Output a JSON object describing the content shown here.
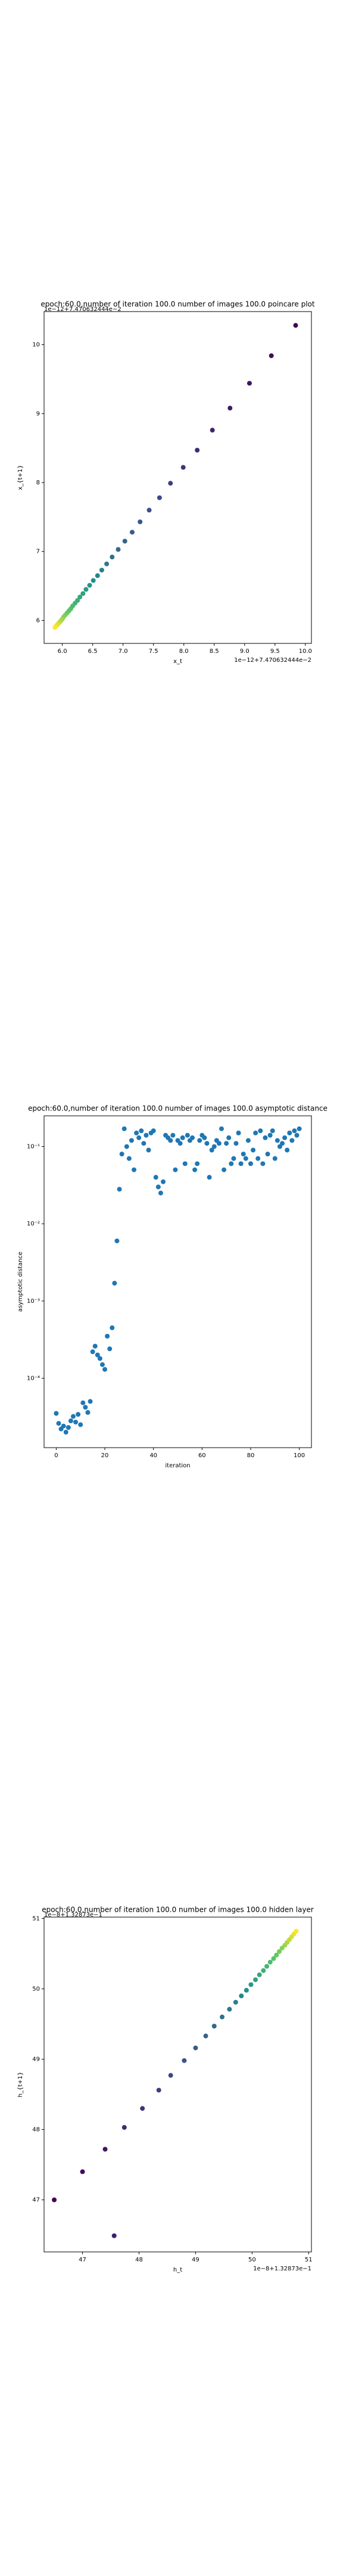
{
  "chart_data": [
    {
      "type": "scatter",
      "title": "epoch:60.0,number of iteration 100.0  number of images 100.0 poincare plot",
      "x_label": "x_t",
      "y_label": "x_{t+1}",
      "x_offset": "1e−12+7.470632444e−2",
      "y_offset": "1e−12+7.470632444e−2",
      "colormap": [
        "#440154",
        "#3b528b",
        "#21918c",
        "#5ec962",
        "#fde725"
      ],
      "x": [
        9.84,
        9.44,
        9.08,
        8.76,
        8.47,
        8.22,
        7.99,
        7.78,
        7.6,
        7.43,
        7.28,
        7.15,
        7.03,
        6.92,
        6.82,
        6.73,
        6.65,
        6.58,
        6.51,
        6.45,
        6.39,
        6.34,
        6.29,
        6.25,
        6.21,
        6.17,
        6.14,
        6.11,
        6.08,
        6.05,
        6.02,
        6.0,
        5.98,
        5.96,
        5.94,
        5.92,
        5.9,
        5.88
      ],
      "values": [
        10.28,
        9.84,
        9.44,
        9.08,
        8.76,
        8.47,
        8.22,
        7.99,
        7.78,
        7.6,
        7.43,
        7.28,
        7.15,
        7.03,
        6.92,
        6.82,
        6.73,
        6.65,
        6.58,
        6.51,
        6.45,
        6.39,
        6.34,
        6.29,
        6.25,
        6.21,
        6.17,
        6.14,
        6.11,
        6.08,
        6.05,
        6.02,
        6.0,
        5.98,
        5.96,
        5.94,
        5.92,
        5.9
      ],
      "xlim": [
        5.7,
        10.1
      ],
      "ylim": [
        5.667,
        10.48
      ],
      "xticks": [
        {
          "value": 6,
          "label": "6.0"
        },
        6.5,
        {
          "value": 7,
          "label": "7.0"
        },
        7.5,
        {
          "value": 8,
          "label": "8.0"
        },
        8.5,
        {
          "value": 9,
          "label": "9.0"
        },
        9.5,
        {
          "value": 10,
          "label": "10.0"
        }
      ],
      "yticks": [
        6,
        7,
        8,
        9,
        10
      ]
    },
    {
      "type": "scatter",
      "title": "epoch:60.0,number of iteration 100.0  number of images 100.0 asymptotic distance",
      "x_label": "iteration",
      "y_label": "asymptotic distance",
      "color": "#1f77b4",
      "log_y": true,
      "x": [
        0,
        1,
        2,
        3,
        4,
        5,
        6,
        7,
        8,
        9,
        10,
        11,
        12,
        13,
        14,
        15,
        16,
        17,
        18,
        19,
        20,
        21,
        22,
        23,
        24,
        25,
        26,
        27,
        28,
        29,
        30,
        31,
        32,
        33,
        34,
        35,
        36,
        37,
        38,
        39,
        40,
        41,
        42,
        43,
        44,
        45,
        46,
        47,
        48,
        49,
        50,
        51,
        52,
        53,
        54,
        55,
        56,
        57,
        58,
        59,
        60,
        61,
        62,
        63,
        64,
        65,
        66,
        67,
        68,
        69,
        70,
        71,
        72,
        73,
        74,
        75,
        76,
        77,
        78,
        79,
        80,
        81,
        82,
        83,
        84,
        85,
        86,
        87,
        88,
        89,
        90,
        91,
        92,
        93,
        94,
        95,
        96,
        97,
        98,
        99,
        100
      ],
      "values": [
        3.5e-05,
        2.6e-05,
        2.2e-05,
        2.4e-05,
        2e-05,
        2.3e-05,
        2.8e-05,
        3.2e-05,
        2.7e-05,
        3.4e-05,
        2.5e-05,
        4.8e-05,
        4.2e-05,
        3.6e-05,
        5e-05,
        0.00022,
        0.00026,
        0.0002,
        0.00018,
        0.00015,
        0.00013,
        0.00035,
        0.00024,
        0.00045,
        0.0017,
        0.006,
        0.028,
        0.08,
        0.17,
        0.1,
        0.07,
        0.12,
        0.05,
        0.15,
        0.13,
        0.16,
        0.11,
        0.14,
        0.09,
        0.15,
        0.16,
        0.04,
        0.03,
        0.025,
        0.035,
        0.14,
        0.13,
        0.12,
        0.14,
        0.05,
        0.12,
        0.11,
        0.13,
        0.06,
        0.14,
        0.12,
        0.13,
        0.05,
        0.06,
        0.12,
        0.14,
        0.13,
        0.11,
        0.04,
        0.09,
        0.1,
        0.12,
        0.11,
        0.17,
        0.05,
        0.11,
        0.13,
        0.06,
        0.07,
        0.11,
        0.15,
        0.06,
        0.08,
        0.07,
        0.12,
        0.06,
        0.09,
        0.15,
        0.07,
        0.16,
        0.06,
        0.13,
        0.08,
        0.14,
        0.16,
        0.07,
        0.12,
        0.1,
        0.11,
        0.13,
        0.09,
        0.15,
        0.12,
        0.16,
        0.14,
        0.17
      ],
      "xlim": [
        -5,
        105
      ],
      "ylim": [
        1.26e-05,
        0.25
      ],
      "xticks": [
        0,
        20,
        40,
        60,
        80,
        100
      ],
      "yticks": [
        {
          "value": 0.0001,
          "label": "10⁻⁴"
        },
        {
          "value": 0.001,
          "label": "10⁻³"
        },
        {
          "value": 0.01,
          "label": "10⁻²"
        },
        {
          "value": 0.1,
          "label": "10⁻¹"
        }
      ]
    },
    {
      "type": "scatter",
      "title": "epoch:60.0,number of iteration 100.0  number of images 100.0 hidden layer",
      "x_label": "h_t",
      "y_label": "h_{t+1}",
      "x_offset": "1e−8+1.32873e−1",
      "y_offset": "1e−8+1.32873e−1",
      "colormap": [
        "#440154",
        "#3b528b",
        "#21918c",
        "#5ec962",
        "#fde725"
      ],
      "x": [
        46.5,
        47.0,
        47.4,
        47.56,
        47.74,
        48.06,
        48.35,
        48.56,
        48.8,
        49.0,
        49.18,
        49.33,
        49.47,
        49.6,
        49.71,
        49.81,
        49.9,
        49.98,
        50.06,
        50.13,
        50.2,
        50.26,
        50.32,
        50.38,
        50.43,
        50.48,
        50.53,
        50.58,
        50.62,
        50.66,
        50.7,
        50.74,
        50.78
      ],
      "values": [
        47.0,
        47.4,
        47.72,
        46.49,
        48.03,
        48.3,
        48.56,
        48.77,
        48.98,
        49.16,
        49.33,
        49.47,
        49.6,
        49.71,
        49.81,
        49.9,
        49.98,
        50.06,
        50.13,
        50.2,
        50.26,
        50.32,
        50.38,
        50.43,
        50.48,
        50.53,
        50.58,
        50.62,
        50.66,
        50.7,
        50.74,
        50.78,
        50.82
      ],
      "xlim": [
        46.32,
        51.05
      ],
      "ylim": [
        46.26,
        51.02
      ],
      "xticks": [
        47,
        48,
        49,
        50,
        51
      ],
      "yticks": [
        47,
        48,
        49,
        50,
        51
      ]
    }
  ]
}
